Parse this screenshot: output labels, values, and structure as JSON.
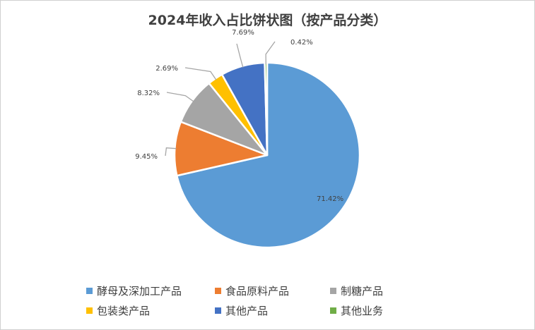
{
  "chart_data": {
    "type": "pie",
    "title": "2024年收入占比饼状图（按产品分类）",
    "categories": [
      "酵母及深加工产品",
      "食品原料产品",
      "制糖产品",
      "包装类产品",
      "其他产品",
      "其他业务"
    ],
    "values": [
      71.42,
      9.45,
      8.32,
      2.69,
      7.69,
      0.42
    ],
    "labels": [
      "71.42%",
      "9.45%",
      "8.32%",
      "2.69%",
      "7.69%",
      "0.42%"
    ],
    "colors": [
      "#5b9bd5",
      "#ed7d31",
      "#a5a5a5",
      "#ffc000",
      "#4472c4",
      "#70ad47"
    ],
    "legend_position": "bottom"
  }
}
